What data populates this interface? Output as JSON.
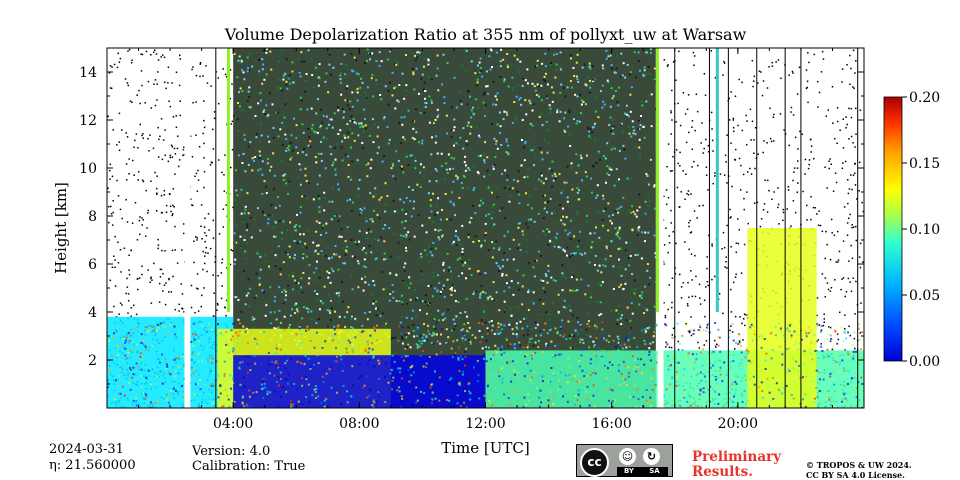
{
  "chart_data": {
    "type": "heatmap",
    "title": "Volume Depolarization Ratio at 355 nm of pollyxt_uw at Warsaw",
    "xlabel": "Time [UTC]",
    "ylabel": "Height [km]",
    "xlim": [
      0,
      24
    ],
    "ylim": [
      0,
      15
    ],
    "x_ticks": [
      {
        "value": 4,
        "label": "04:00"
      },
      {
        "value": 8,
        "label": "08:00"
      },
      {
        "value": 12,
        "label": "12:00"
      },
      {
        "value": 16,
        "label": "16:00"
      },
      {
        "value": 20,
        "label": "20:00"
      }
    ],
    "y_ticks": [
      {
        "value": 2,
        "label": "2"
      },
      {
        "value": 4,
        "label": "4"
      },
      {
        "value": 6,
        "label": "6"
      },
      {
        "value": 8,
        "label": "8"
      },
      {
        "value": 10,
        "label": "10"
      },
      {
        "value": 12,
        "label": "12"
      },
      {
        "value": 14,
        "label": "14"
      }
    ],
    "colorbar": {
      "range": [
        0.0,
        0.2
      ],
      "colormap": "jet",
      "ticks": [
        {
          "value": 0.0,
          "label": "0.00"
        },
        {
          "value": 0.05,
          "label": "0.05"
        },
        {
          "value": 0.1,
          "label": "0.10"
        },
        {
          "value": 0.15,
          "label": "0.15"
        },
        {
          "value": 0.2,
          "label": "0.20"
        }
      ]
    },
    "data_gaps_hours": [
      2.55,
      17.55
    ],
    "noise_segment_hours": [
      4.0,
      17.4
    ],
    "marker_line_hours": [
      3.45,
      18.0,
      19.1,
      19.7,
      20.6,
      21.5,
      22.0,
      23.8
    ],
    "colored_line_hours": [
      {
        "h": 3.85,
        "color": "#8ef020"
      },
      {
        "h": 17.45,
        "color": "#8ef020"
      },
      {
        "h": 19.35,
        "color": "#33c9c9"
      }
    ],
    "layers": [
      {
        "name": "boundary-layer-morning",
        "from": 0,
        "to": 4,
        "top_km": 3.8,
        "value": 0.07
      },
      {
        "name": "residual-layer",
        "from": 3.5,
        "to": 9,
        "top_km": 3.3,
        "value": 0.12
      },
      {
        "name": "low-depol-layer",
        "from": 4,
        "to": 12,
        "top_km": 2.2,
        "value": 0.02
      },
      {
        "name": "afternoon-layer",
        "from": 12,
        "to": 24,
        "top_km": 2.4,
        "value": 0.09
      },
      {
        "name": "elevated-aerosol-layer",
        "from": 20.3,
        "to": 22.5,
        "top_km": 7.5,
        "value": 0.12
      }
    ]
  },
  "date_label": "2024-03-31",
  "eta_label": "η: 21.560000",
  "version_label": "Version: 4.0",
  "calibration_label": "Calibration: True",
  "prelim_line1": "Preliminary",
  "prelim_line2": "Results.",
  "copyright_line1": "© TROPOS & UW 2024.",
  "copyright_line2": "CC BY SA 4.0 License.",
  "cc_badge": {
    "main": "cc",
    "by_label": "BY",
    "sa_label": "SA",
    "by_icon": "person-icon",
    "sa_icon": "share-alike-icon"
  }
}
